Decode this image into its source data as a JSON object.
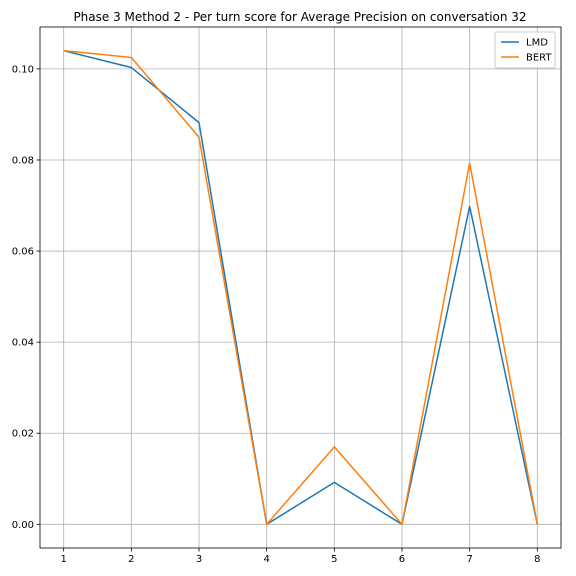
{
  "chart_data": {
    "type": "line",
    "title": "Phase 3 Method 2 - Per turn score for Average Precision on conversation 32",
    "xlabel": "",
    "ylabel": "",
    "x": [
      1,
      2,
      3,
      4,
      5,
      6,
      7,
      8
    ],
    "xticks": [
      "1",
      "2",
      "3",
      "4",
      "5",
      "6",
      "7",
      "8"
    ],
    "xlim": [
      0.65,
      8.35
    ],
    "yticks": [
      "0.00",
      "0.02",
      "0.04",
      "0.06",
      "0.08",
      "0.10"
    ],
    "ytick_values": [
      0.0,
      0.02,
      0.04,
      0.06,
      0.08,
      0.1
    ],
    "ylim": [
      -0.0052,
      0.1092
    ],
    "grid": true,
    "legend_position": "top-right",
    "series": [
      {
        "name": "LMD",
        "color": "#1f77b4",
        "values": [
          0.104,
          0.1003,
          0.0882,
          0.0,
          0.0092,
          0.0,
          0.0698,
          0.0
        ]
      },
      {
        "name": "BERT",
        "color": "#ff7f0e",
        "values": [
          0.104,
          0.1025,
          0.085,
          0.0,
          0.017,
          0.0,
          0.0793,
          0.0
        ]
      }
    ]
  }
}
